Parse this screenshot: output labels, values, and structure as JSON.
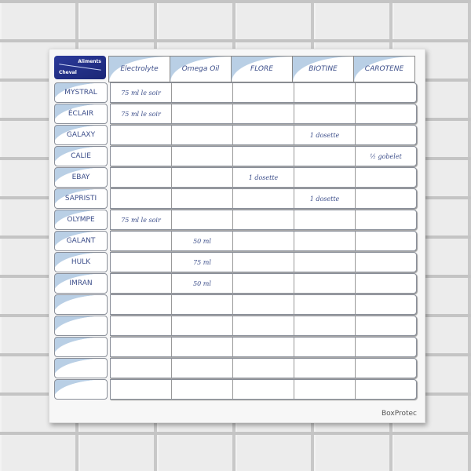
{
  "board": {
    "logo": {
      "top_label": "Aliments",
      "bottom_label": "Cheval"
    },
    "columns": [
      "Electrolyte",
      "Omega Oil",
      "FLORE",
      "BIOTINE",
      "CAROTENE"
    ],
    "rows": [
      {
        "name": "MYSTRAL",
        "cells": [
          "75 ml le soir",
          "",
          "",
          "",
          ""
        ]
      },
      {
        "name": "ÉCLAIR",
        "cells": [
          "75 ml le soir",
          "",
          "",
          "",
          ""
        ]
      },
      {
        "name": "GALAXY",
        "cells": [
          "",
          "",
          "",
          "1 dosette",
          ""
        ]
      },
      {
        "name": "CALIE",
        "cells": [
          "",
          "",
          "",
          "",
          "½ gobelet"
        ]
      },
      {
        "name": "EBAY",
        "cells": [
          "",
          "",
          "1 dosette",
          "",
          ""
        ]
      },
      {
        "name": "SAPRISTI",
        "cells": [
          "",
          "",
          "",
          "1 dosette",
          ""
        ]
      },
      {
        "name": "OLYMPE",
        "cells": [
          "75 ml le soir",
          "",
          "",
          "",
          ""
        ]
      },
      {
        "name": "GALANT",
        "cells": [
          "",
          "50 ml",
          "",
          "",
          ""
        ]
      },
      {
        "name": "HULK",
        "cells": [
          "",
          "75 ml",
          "",
          "",
          ""
        ]
      },
      {
        "name": "IMRAN",
        "cells": [
          "",
          "50 ml",
          "",
          "",
          ""
        ]
      },
      {
        "name": "",
        "cells": [
          "",
          "",
          "",
          "",
          ""
        ]
      },
      {
        "name": "",
        "cells": [
          "",
          "",
          "",
          "",
          ""
        ]
      },
      {
        "name": "",
        "cells": [
          "",
          "",
          "",
          "",
          ""
        ]
      },
      {
        "name": "",
        "cells": [
          "",
          "",
          "",
          "",
          ""
        ]
      },
      {
        "name": "",
        "cells": [
          "",
          "",
          "",
          "",
          ""
        ]
      }
    ],
    "brand": "BoxProtec"
  },
  "colors": {
    "logo": "#1b2676",
    "ink": "#3c4e8a",
    "accent": "#b9cfe5"
  }
}
